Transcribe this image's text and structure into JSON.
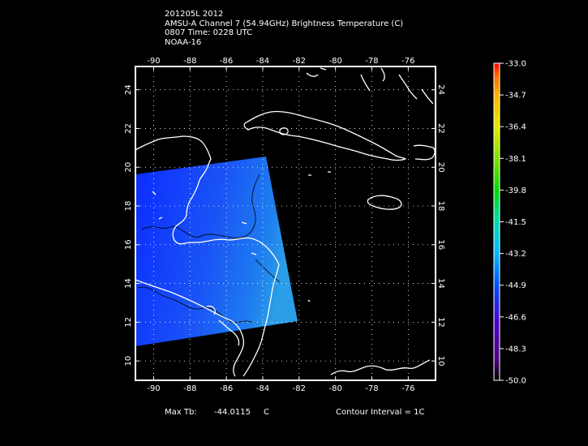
{
  "header": {
    "line1": "201205L 2012",
    "line2": "AMSU-A Channel 7 (54.94GHz) Brightness Temperature (C)",
    "line3": "0807  Time: 0228 UTC",
    "line4": "NOAA-16"
  },
  "map": {
    "lon_ticks": [
      "-90",
      "-88",
      "-86",
      "-84",
      "-82",
      "-80",
      "-78",
      "-76"
    ],
    "lat_ticks": [
      "24",
      "22",
      "20",
      "18",
      "16",
      "14",
      "12",
      "10"
    ],
    "lon_range": [
      -91,
      -74.5
    ],
    "lat_range": [
      9,
      25.2
    ],
    "swath_colors": [
      "#0b2bff",
      "#1e6ef5",
      "#2a9ee6"
    ],
    "coastline_color": "#ffffff",
    "gridline_style": "dotted"
  },
  "colorbar": {
    "labels": [
      "-33.0",
      "-34.7",
      "-36.4",
      "-38.1",
      "-39.8",
      "-41.5",
      "-43.2",
      "-44.9",
      "-46.6",
      "-48.3",
      "-50.0"
    ],
    "colors": [
      "#ff0000",
      "#ff6a00",
      "#ffb000",
      "#e8e800",
      "#7ee000",
      "#00d800",
      "#00d8b0",
      "#00b8ff",
      "#0050ff",
      "#4a00c8",
      "#500080",
      "#000000"
    ]
  },
  "footer": {
    "max_label": "Max Tb:",
    "max_value": "-44.0115",
    "max_unit": "C",
    "contour": "Contour Interval = 1C"
  }
}
